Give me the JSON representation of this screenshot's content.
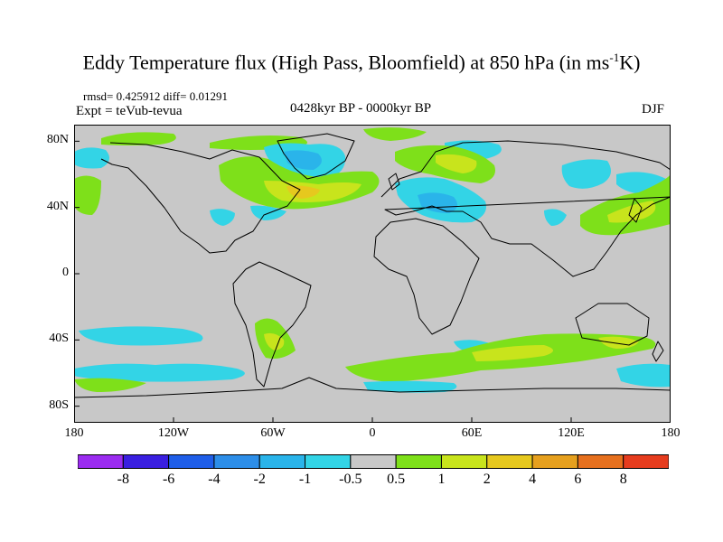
{
  "title": {
    "before_sup": "Eddy Temperature flux (High Pass, Bloomfield) at 850 hPa (in ms",
    "sup": "-1",
    "after_sup": "K)"
  },
  "stats": "rmsd= 0.425912 diff= 0.01291",
  "expt": "Expt = teVub-tevua",
  "period": "0428kyr BP - 0000kyr BP",
  "season": "DJF",
  "axes": {
    "y_ticks": [
      "80N",
      "40N",
      "0",
      "40S",
      "80S"
    ],
    "x_ticks": [
      "180",
      "120W",
      "60W",
      "0",
      "60E",
      "120E",
      "180"
    ]
  },
  "colorbar": {
    "labels": [
      "-8",
      "-6",
      "-4",
      "-2",
      "-1",
      "-0.5",
      "0.5",
      "1",
      "2",
      "4",
      "6",
      "8"
    ],
    "colors": [
      "#9b2cf0",
      "#3a1fe0",
      "#1f5ee8",
      "#2d8ee8",
      "#2ab4ea",
      "#33d4e6",
      "#c8c8c8",
      "#7ee01a",
      "#c8e41c",
      "#e6c81e",
      "#e6a01e",
      "#e6701e",
      "#e63c1e"
    ]
  },
  "map": {
    "background_color": "#c8c8c8",
    "coastline_color": "#000000",
    "lon_range": [
      -180,
      180
    ],
    "lat_range": [
      -90,
      90
    ]
  }
}
